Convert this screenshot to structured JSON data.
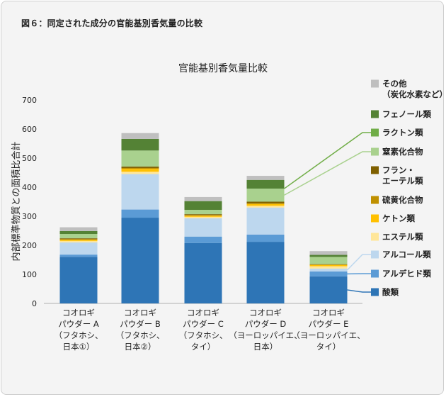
{
  "figure_caption": "図６：同定された成分の官能基別香気量の比較",
  "chart_data": {
    "type": "bar",
    "stacked": true,
    "title": "官能基別香気量比較",
    "ylabel": "内部標準物質との面積比合計",
    "xlabel": "",
    "ylim": [
      0,
      700
    ],
    "yticks": [
      0,
      100,
      200,
      300,
      400,
      500,
      600,
      700
    ],
    "grid": false,
    "legend_position": "right",
    "categories": [
      [
        "コオロギ",
        "パウダー A",
        "（フタホシ、",
        "日本①）"
      ],
      [
        "コオロギ",
        "パウダー B",
        "（フタホシ、",
        "日本②）"
      ],
      [
        "コオロギ",
        "パウダー C",
        "（フタホシ、",
        "タイ）"
      ],
      [
        "コオロギ",
        "パウダー D",
        "（ヨーロッパイエ、",
        "日本）"
      ],
      [
        "コオロギ",
        "パウダー E",
        "（ヨーロッパイエ、",
        "タイ）"
      ]
    ],
    "series": [
      {
        "name": "酸類",
        "color": "#2e75b6",
        "values": [
          160,
          295,
          208,
          212,
          93
        ]
      },
      {
        "name": "アルデヒド類",
        "color": "#5b9bd5",
        "values": [
          8,
          28,
          22,
          25,
          17
        ]
      },
      {
        "name": "アルコール類",
        "color": "#bdd7ee",
        "values": [
          42,
          122,
          63,
          93,
          10
        ]
      },
      {
        "name": "エステル類",
        "color": "#ffe699",
        "values": [
          5,
          8,
          5,
          6,
          8
        ]
      },
      {
        "name": "ケトン類",
        "color": "#ffc000",
        "values": [
          4,
          10,
          4,
          6,
          4
        ]
      },
      {
        "name": "硫黄化合物",
        "color": "#bf9000",
        "values": [
          2,
          3,
          2,
          3,
          2
        ]
      },
      {
        "name": "フラン・エーテル類",
        "color": "#7f6000",
        "values": [
          3,
          5,
          3,
          5,
          1
        ]
      },
      {
        "name": "窒素化合物",
        "color": "#a9d18e",
        "values": [
          15,
          55,
          15,
          45,
          25
        ]
      },
      {
        "name": "ラクトン類",
        "color": "#70ad47",
        "values": [
          0,
          0,
          0,
          0,
          0
        ]
      },
      {
        "name": "フェノール類",
        "color": "#548235",
        "values": [
          10,
          40,
          30,
          30,
          7
        ]
      },
      {
        "name": "その他（炭化水素など）",
        "color": "#bfbfbf",
        "values": [
          13,
          20,
          14,
          14,
          13
        ]
      }
    ],
    "legend": [
      {
        "lines": [
          "その他",
          "（炭化水素など）"
        ],
        "color": "#bfbfbf"
      },
      {
        "lines": [
          "フェノール類"
        ],
        "color": "#548235"
      },
      {
        "lines": [
          "ラクトン類"
        ],
        "color": "#70ad47"
      },
      {
        "lines": [
          "窒素化合物"
        ],
        "color": "#a9d18e"
      },
      {
        "lines": [
          "フラン・",
          "エーテル類"
        ],
        "color": "#7f6000"
      },
      {
        "lines": [
          "硫黄化合物"
        ],
        "color": "#bf9000"
      },
      {
        "lines": [
          "ケトン類"
        ],
        "color": "#ffc000"
      },
      {
        "lines": [
          "エステル類"
        ],
        "color": "#ffe699"
      },
      {
        "lines": [
          "アルコール類"
        ],
        "color": "#bdd7ee"
      },
      {
        "lines": [
          "アルデヒド類"
        ],
        "color": "#5b9bd5"
      },
      {
        "lines": [
          "酸類"
        ],
        "color": "#2e75b6"
      }
    ]
  }
}
